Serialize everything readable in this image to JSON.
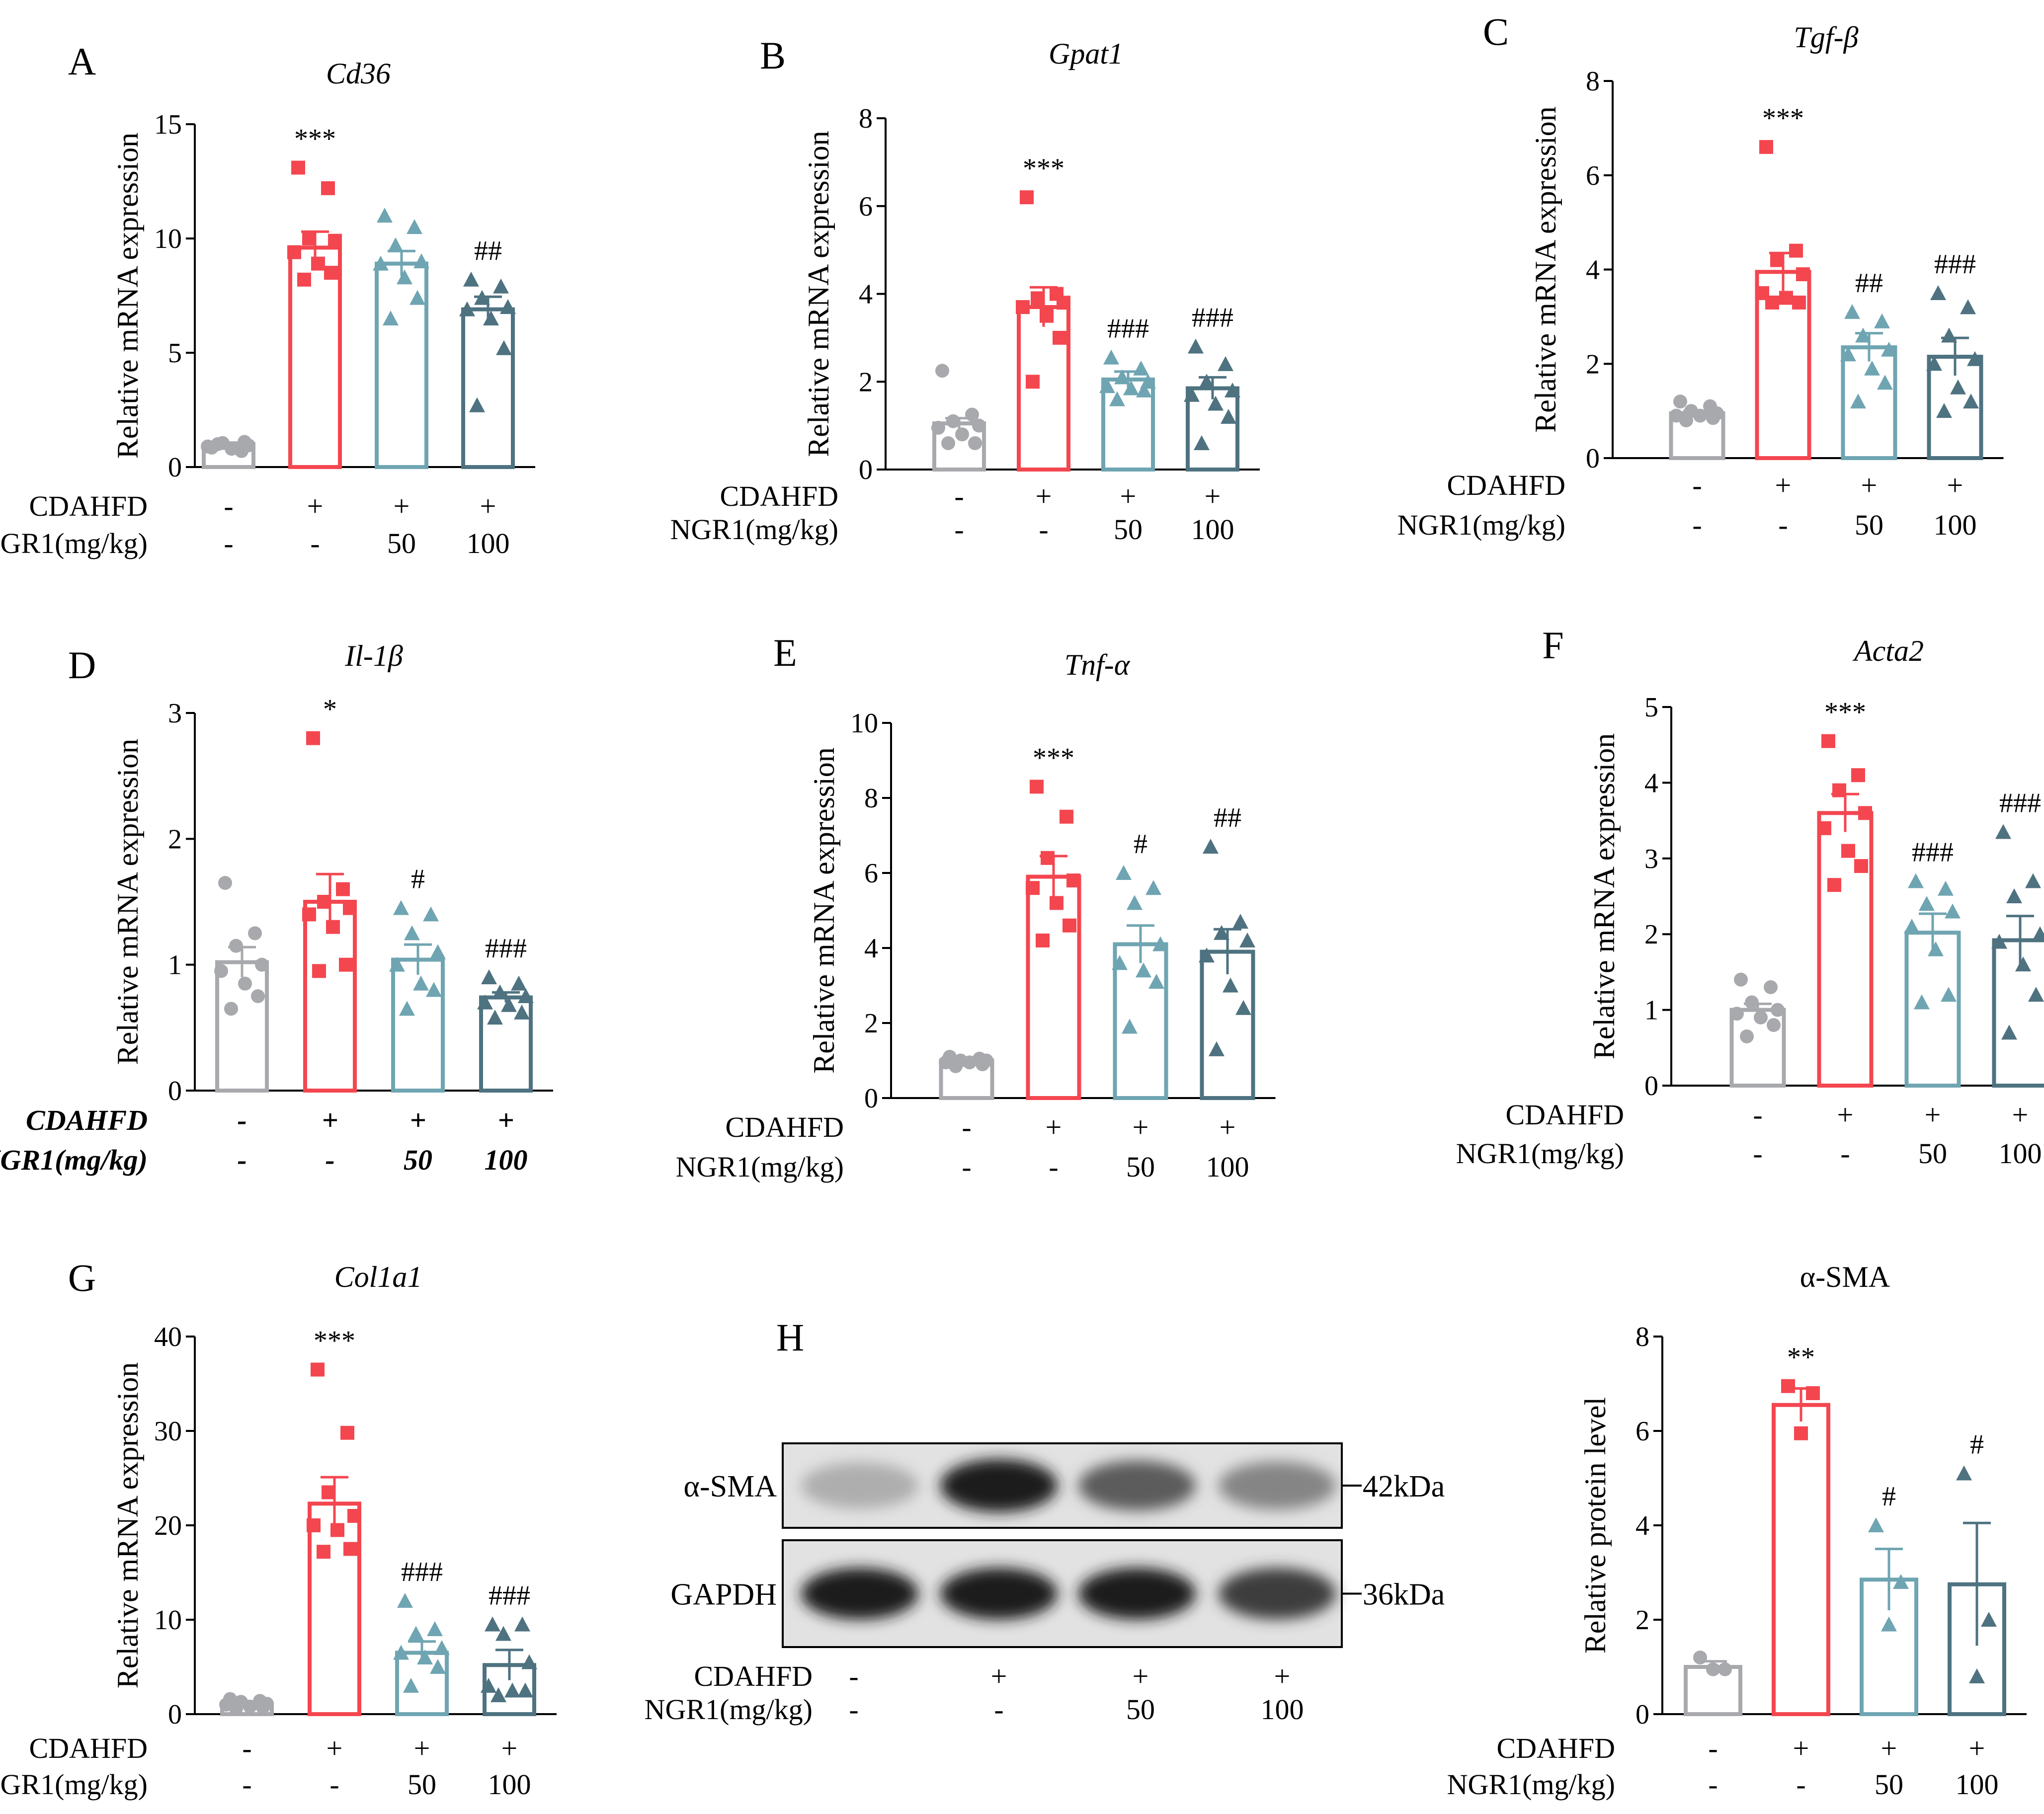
{
  "colors": {
    "control": "#a8a9ad",
    "cdahfd": "#f4464f",
    "ngr1_50": "#6fa5b2",
    "ngr1_100": "#4e7280"
  },
  "group_markers": [
    "circle",
    "square",
    "triangle-up",
    "triangle-up"
  ],
  "treatment_rows": {
    "row1_label": "CDAHFD",
    "row2_label": "NGR1(mg/kg)",
    "row1_values": [
      "-",
      "+",
      "+",
      "+"
    ],
    "row2_values": [
      "-",
      "-",
      "50",
      "100"
    ]
  },
  "chart_data": [
    {
      "panel": "A",
      "type": "bar",
      "title": "Cd36",
      "ylabel": "Relative mRNA expression",
      "ylim": [
        0,
        15
      ],
      "yticks": [
        "0",
        "5",
        "10",
        "15"
      ],
      "values": [
        1.0,
        9.6,
        8.9,
        6.9
      ],
      "sem": [
        0.07,
        0.7,
        0.55,
        0.55
      ],
      "significance": [
        "",
        "***",
        "",
        "##"
      ],
      "points": [
        [
          0.85,
          0.7,
          1.05,
          0.95,
          0.9,
          0.8,
          1.1,
          1.0
        ],
        [
          13.1,
          12.2,
          10.0,
          9.9,
          9.4,
          8.9,
          8.5,
          8.2
        ],
        [
          11.0,
          10.5,
          9.7,
          9.0,
          8.9,
          8.3,
          7.4,
          6.5
        ],
        [
          8.2,
          7.9,
          7.4,
          7.0,
          6.9,
          6.5,
          5.2,
          2.7
        ]
      ],
      "italic_rows": false
    },
    {
      "panel": "B",
      "type": "bar",
      "title": "Gpat1",
      "ylabel": "Relative mRNA expression",
      "ylim": [
        0,
        8
      ],
      "yticks": [
        "0",
        "2",
        "4",
        "6",
        "8"
      ],
      "values": [
        1.05,
        3.7,
        2.05,
        1.85
      ],
      "sem": [
        0.12,
        0.45,
        0.18,
        0.25
      ],
      "significance": [
        "",
        "***",
        "###",
        "###"
      ],
      "points": [
        [
          2.25,
          1.25,
          1.1,
          1.0,
          0.95,
          0.8,
          0.6,
          0.6
        ],
        [
          6.2,
          4.0,
          3.9,
          3.8,
          3.7,
          3.5,
          3.0,
          2.0
        ],
        [
          2.55,
          2.3,
          2.1,
          2.0,
          1.9,
          1.85,
          1.8,
          1.6
        ],
        [
          2.8,
          2.4,
          2.0,
          1.8,
          1.7,
          1.5,
          1.2,
          0.6
        ]
      ],
      "italic_rows": false
    },
    {
      "panel": "C",
      "type": "bar",
      "title": "Tgf-β",
      "ylabel": "Relative mRNA expression",
      "ylim": [
        0,
        8
      ],
      "yticks": [
        "0",
        "2",
        "4",
        "6",
        "8"
      ],
      "values": [
        0.95,
        3.95,
        2.35,
        2.15
      ],
      "sem": [
        0.05,
        0.4,
        0.3,
        0.4
      ],
      "significance": [
        "",
        "***",
        "##",
        "###"
      ],
      "points": [
        [
          1.2,
          1.1,
          1.0,
          0.95,
          0.9,
          0.9,
          0.85,
          0.8
        ],
        [
          6.6,
          4.4,
          4.2,
          3.9,
          3.5,
          3.4,
          3.3,
          3.3
        ],
        [
          3.1,
          2.9,
          2.6,
          2.3,
          2.2,
          1.9,
          1.6,
          1.2
        ],
        [
          3.5,
          3.2,
          2.6,
          2.1,
          2.0,
          1.5,
          1.2,
          1.0
        ]
      ],
      "italic_rows": false
    },
    {
      "panel": "D",
      "type": "bar",
      "title": "Il-1β",
      "ylabel": "Relative mRNA expression",
      "ylim": [
        0,
        3
      ],
      "yticks": [
        "0",
        "1",
        "2",
        "3"
      ],
      "values": [
        1.02,
        1.5,
        1.04,
        0.74
      ],
      "sem": [
        0.12,
        0.22,
        0.12,
        0.04
      ],
      "significance": [
        "",
        "*",
        "#",
        "###"
      ],
      "points": [
        [
          1.65,
          1.25,
          1.15,
          1.0,
          0.95,
          0.85,
          0.75,
          0.65
        ],
        [
          2.8,
          1.6,
          1.5,
          1.45,
          1.4,
          1.3,
          1.0,
          0.95
        ],
        [
          1.45,
          1.4,
          1.25,
          1.1,
          1.0,
          0.85,
          0.8,
          0.65
        ],
        [
          0.9,
          0.85,
          0.78,
          0.75,
          0.7,
          0.68,
          0.62,
          0.58
        ]
      ],
      "italic_rows": true
    },
    {
      "panel": "E",
      "type": "bar",
      "title": "Tnf-α",
      "ylabel": "Relative mRNA expression",
      "ylim": [
        0,
        10
      ],
      "yticks": [
        "0",
        "2",
        "4",
        "6",
        "8",
        "10"
      ],
      "values": [
        1.0,
        5.9,
        4.1,
        3.9
      ],
      "sem": [
        0.05,
        0.55,
        0.5,
        0.6
      ],
      "significance": [
        "",
        "***",
        "#",
        "##"
      ],
      "points": [
        [
          1.1,
          1.05,
          1.0,
          1.0,
          0.95,
          0.95,
          0.9,
          0.85
        ],
        [
          8.3,
          7.5,
          6.4,
          5.8,
          5.6,
          5.2,
          4.6,
          4.2
        ],
        [
          6.0,
          5.6,
          5.2,
          4.1,
          3.6,
          3.4,
          3.1,
          1.9
        ],
        [
          6.7,
          4.7,
          4.4,
          4.2,
          3.8,
          3.0,
          2.4,
          1.3
        ]
      ],
      "italic_rows": false
    },
    {
      "panel": "F",
      "type": "bar",
      "title": "Acta2",
      "ylabel": "Relative mRNA expression",
      "ylim": [
        0,
        5
      ],
      "yticks": [
        "0",
        "1",
        "2",
        "3",
        "4",
        "5"
      ],
      "values": [
        1.0,
        3.6,
        2.02,
        1.92
      ],
      "sem": [
        0.08,
        0.25,
        0.25,
        0.32
      ],
      "significance": [
        "",
        "***",
        "###",
        "###"
      ],
      "points": [
        [
          1.4,
          1.3,
          1.1,
          1.0,
          0.95,
          0.9,
          0.8,
          0.65
        ],
        [
          4.55,
          4.1,
          3.9,
          3.6,
          3.4,
          3.1,
          2.9,
          2.65
        ],
        [
          2.7,
          2.6,
          2.4,
          2.3,
          2.1,
          1.8,
          1.2,
          1.1
        ],
        [
          3.35,
          2.7,
          2.5,
          2.0,
          1.9,
          1.6,
          1.2,
          0.7
        ]
      ],
      "italic_rows": false
    },
    {
      "panel": "G",
      "type": "bar",
      "title": "Col1a1",
      "ylabel": "Relative mRNA expression",
      "ylim": [
        0,
        40
      ],
      "yticks": [
        "0",
        "10",
        "20",
        "30",
        "40"
      ],
      "values": [
        1.0,
        22.3,
        6.5,
        5.2
      ],
      "sem": [
        0.2,
        2.8,
        1.2,
        1.6
      ],
      "significance": [
        "",
        "***",
        "###",
        "###"
      ],
      "points": [
        [
          1.6,
          1.4,
          1.3,
          1.1,
          1.0,
          0.8,
          0.7,
          0.6
        ],
        [
          36.5,
          29.8,
          23.5,
          21.0,
          20.0,
          19.5,
          17.5,
          17.2
        ],
        [
          12.0,
          9.0,
          8.5,
          7.0,
          6.5,
          6.0,
          5.0,
          3.0
        ],
        [
          9.5,
          9.5,
          8.5,
          5.5,
          3.0,
          2.5,
          2.5,
          2.0
        ]
      ],
      "italic_rows": false
    },
    {
      "panel": "H-quant",
      "type": "bar",
      "title": "α-SMA",
      "ylabel": "Relative protein level",
      "ylim": [
        0,
        8
      ],
      "yticks": [
        "0",
        "2",
        "4",
        "6",
        "8"
      ],
      "values": [
        1.0,
        6.55,
        2.85,
        2.75
      ],
      "sem": [
        0.12,
        0.35,
        0.65,
        1.3
      ],
      "significance": [
        "",
        "**",
        "#",
        "#"
      ],
      "points": [
        [
          1.2,
          0.95,
          0.95
        ],
        [
          6.95,
          6.8,
          5.95
        ],
        [
          4.0,
          2.8,
          1.9
        ],
        [
          5.1,
          2.0,
          0.8
        ]
      ],
      "italic_rows": false
    }
  ],
  "western_blot": {
    "panel": "H",
    "bands": [
      {
        "protein": "α-SMA",
        "size": "42kDa",
        "intensities": [
          0.25,
          0.95,
          0.65,
          0.45
        ]
      },
      {
        "protein": "GAPDH",
        "size": "36kDa",
        "intensities": [
          0.95,
          0.95,
          0.95,
          0.8
        ]
      }
    ]
  }
}
